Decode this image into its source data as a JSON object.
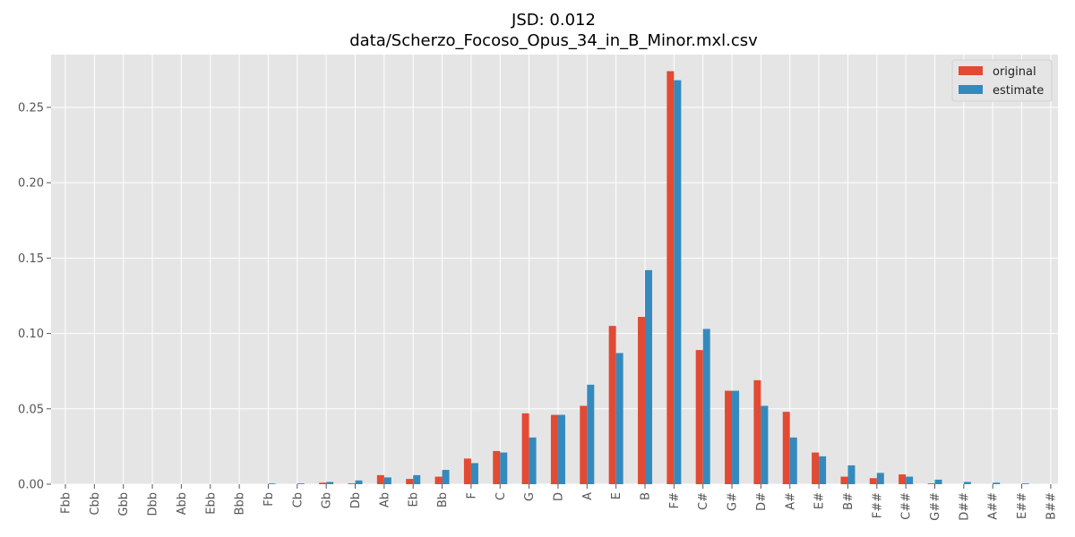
{
  "chart_data": {
    "type": "bar",
    "title": "JSD: 0.012",
    "subtitle": "data/Scherzo_Focoso_Opus_34_in_B_Minor.mxl.csv",
    "xlabel": "",
    "ylabel": "",
    "ylim": [
      0,
      0.285
    ],
    "yticks": [
      0.0,
      0.05,
      0.1,
      0.15,
      0.2,
      0.25
    ],
    "ytick_labels": [
      "0.00",
      "0.05",
      "0.10",
      "0.15",
      "0.20",
      "0.25"
    ],
    "grid": true,
    "legend_position": "top-right",
    "categories": [
      "Fbb",
      "Cbb",
      "Gbb",
      "Dbb",
      "Abb",
      "Ebb",
      "Bbb",
      "Fb",
      "Cb",
      "Gb",
      "Db",
      "Ab",
      "Eb",
      "Bb",
      "F",
      "C",
      "G",
      "D",
      "A",
      "E",
      "B",
      "F#",
      "C#",
      "G#",
      "D#",
      "A#",
      "E#",
      "B#",
      "F##",
      "C##",
      "G##",
      "D##",
      "A##",
      "E##",
      "B##"
    ],
    "series": [
      {
        "name": "original",
        "color": "#E24A33",
        "values": [
          0,
          0,
          0,
          0,
          0,
          0,
          0,
          0,
          0,
          0.001,
          0.0005,
          0.006,
          0.0035,
          0.005,
          0.017,
          0.022,
          0.047,
          0.046,
          0.052,
          0.105,
          0.111,
          0.274,
          0.089,
          0.062,
          0.069,
          0.048,
          0.021,
          0.005,
          0.004,
          0.0065,
          0.0005,
          0,
          0,
          0,
          0
        ]
      },
      {
        "name": "estimate",
        "color": "#348ABD",
        "values": [
          0,
          0,
          0,
          0,
          0,
          0,
          0,
          0.0005,
          0.0005,
          0.0015,
          0.0025,
          0.0045,
          0.006,
          0.0095,
          0.014,
          0.021,
          0.031,
          0.046,
          0.066,
          0.087,
          0.142,
          0.268,
          0.103,
          0.062,
          0.052,
          0.031,
          0.0185,
          0.0125,
          0.0075,
          0.005,
          0.003,
          0.0015,
          0.001,
          0.0005,
          0
        ]
      }
    ]
  }
}
